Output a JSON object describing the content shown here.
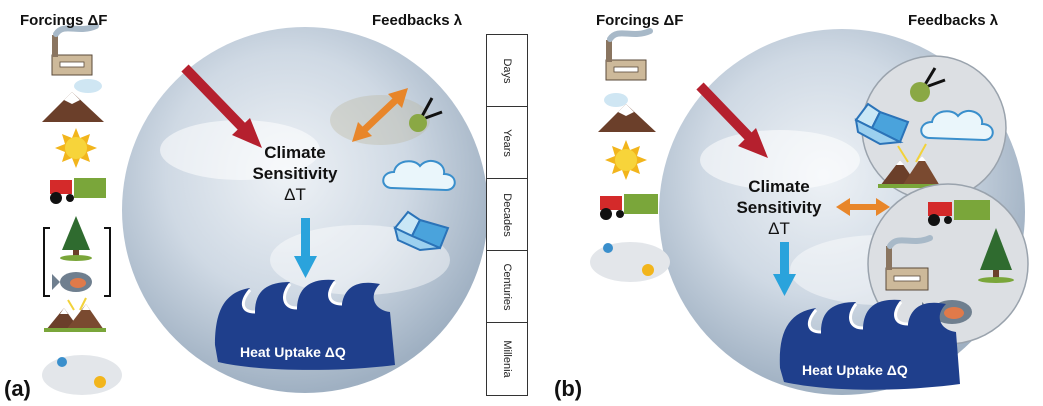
{
  "panel_a": {
    "tag": "(a)",
    "forcings_title": "Forcings ΔF",
    "feedbacks_title": "Feedbacks λ",
    "center_line1": "Climate",
    "center_line2": "Sensitivity",
    "center_line3": "ΔT",
    "uptake": "Heat Uptake ΔQ",
    "timescales": [
      "Days",
      "Years",
      "Decades",
      "Centuries",
      "Millenia"
    ]
  },
  "panel_b": {
    "tag": "(b)",
    "forcings_title": "Forcings ΔF",
    "feedbacks_title": "Feedbacks λ",
    "center_line1": "Climate",
    "center_line2": "Sensitivity",
    "center_line3": "ΔT",
    "uptake": "Heat Uptake ΔQ"
  },
  "icons": {
    "forcings": [
      "factory-icon",
      "volcano-icon",
      "sun-icon",
      "tractor-field-icon",
      "tree-icon",
      "fish-icon",
      "mountains-icon",
      "orbit-icon"
    ],
    "feedbacks": [
      "molecule-icon",
      "cloud-icon",
      "ice-icon"
    ]
  },
  "colors": {
    "forcing_arrow": "#b5202e",
    "feedback_arrow": "#e8862a",
    "uptake_arrow": "#2aa3dc",
    "ocean_wave": "#1f3f8c",
    "earth": "#c9d6e3"
  }
}
